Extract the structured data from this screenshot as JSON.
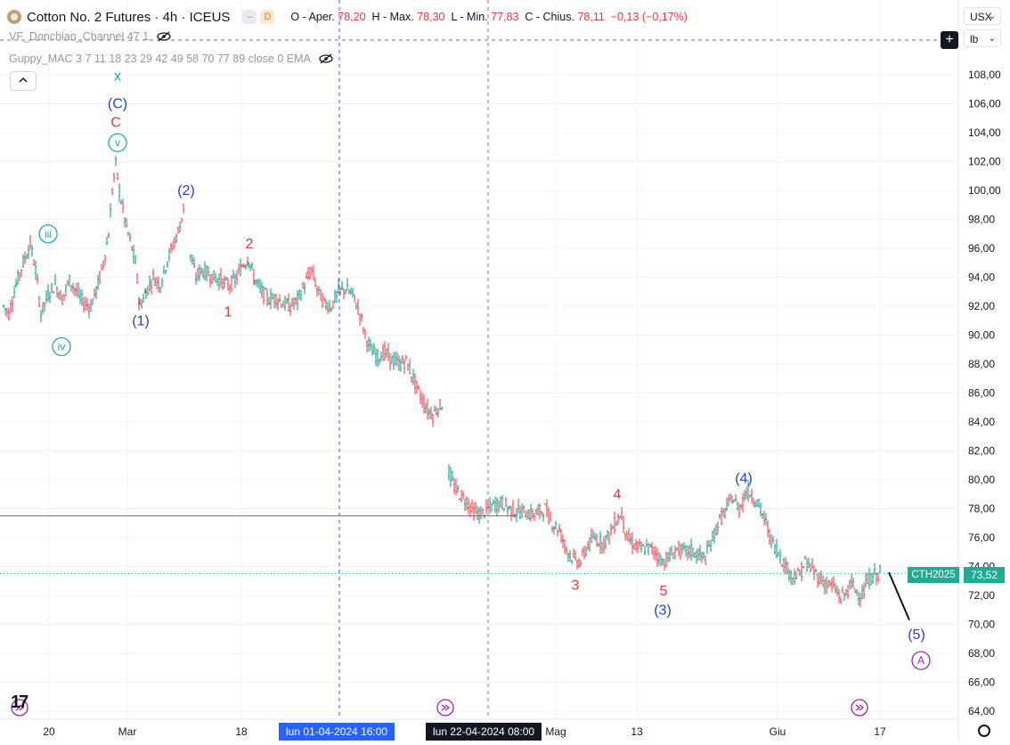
{
  "header": {
    "title": "Cotton No. 2 Futures · 4h · ICEUS",
    "badge_d": "D",
    "ohlc": {
      "open_label": "O - Aper.",
      "open": "78,20",
      "high_label": "H - Max.",
      "high": "78,30",
      "low_label": "L - Min.",
      "low": "77,83",
      "close_label": "C - Chius.",
      "close": "78,11",
      "change": "−0,13 (−0,17%)"
    }
  },
  "indicators": [
    {
      "label": "VF_Donchian_Channel 47 1"
    },
    {
      "label": "Guppy_MAC 3 7 11 18 23 29 42 49 58 70 77 89 close 0 EMA"
    }
  ],
  "scale": {
    "currency": "USX",
    "unit": "lb"
  },
  "price_tag": {
    "symbol": "CTH2025",
    "value": "73,52"
  },
  "crosshair_tags": {
    "date1": "lun 01-04-2024   16:00",
    "date2": "lun 22-04-2024   08:00"
  },
  "colors": {
    "up": "#089981",
    "down": "#f23645",
    "blue_wave": "#2a3fc4",
    "red_wave": "#e03a3a",
    "green_wave": "#22ab94",
    "purple": "#9c27b0",
    "hline": "#e53935",
    "crosshair": "#2962ff"
  },
  "chart_data": {
    "type": "candlestick",
    "ylim": [
      63,
      110
    ],
    "y_ticks": [
      "108,00",
      "106,00",
      "104,00",
      "102,00",
      "100,00",
      "98,00",
      "96,00",
      "94,00",
      "92,00",
      "90,00",
      "88,00",
      "86,00",
      "84,00",
      "82,00",
      "80,00",
      "78,00",
      "76,00",
      "74,00",
      "72,00",
      "70,00",
      "68,00",
      "66,00",
      "64,00"
    ],
    "x_ticks": [
      "20",
      "Mar",
      "18",
      "Mag",
      "13",
      "Giu",
      "17"
    ],
    "horizontal_level": 77.5,
    "last_price": 73.52,
    "price_path": [
      {
        "t": 0,
        "p": 92.0
      },
      {
        "t": 6,
        "p": 91.5
      },
      {
        "t": 14,
        "p": 93.5
      },
      {
        "t": 22,
        "p": 95.0
      },
      {
        "t": 30,
        "p": 96.3
      },
      {
        "t": 36,
        "p": 94.5
      },
      {
        "t": 42,
        "p": 91.5
      },
      {
        "t": 50,
        "p": 92.8
      },
      {
        "t": 58,
        "p": 93.5
      },
      {
        "t": 66,
        "p": 92.5
      },
      {
        "t": 74,
        "p": 93.8
      },
      {
        "t": 82,
        "p": 93.0
      },
      {
        "t": 90,
        "p": 92.2
      },
      {
        "t": 98,
        "p": 92.0
      },
      {
        "t": 106,
        "p": 93.5
      },
      {
        "t": 112,
        "p": 95.0
      },
      {
        "t": 118,
        "p": 97.0
      },
      {
        "t": 122,
        "p": 100.0
      },
      {
        "t": 126,
        "p": 101.8
      },
      {
        "t": 130,
        "p": 100.0
      },
      {
        "t": 136,
        "p": 98.0
      },
      {
        "t": 142,
        "p": 96.5
      },
      {
        "t": 148,
        "p": 95.0
      },
      {
        "t": 153,
        "p": 92.0
      },
      {
        "t": 160,
        "p": 93.0
      },
      {
        "t": 168,
        "p": 94.0
      },
      {
        "t": 176,
        "p": 93.5
      },
      {
        "t": 184,
        "p": 95.2
      },
      {
        "t": 192,
        "p": 96.5
      },
      {
        "t": 198,
        "p": 97.5
      },
      {
        "t": 204,
        "p": 99.5
      },
      {
        "t": 210,
        "p": 95.5
      },
      {
        "t": 216,
        "p": 94.0
      },
      {
        "t": 222,
        "p": 94.5
      },
      {
        "t": 228,
        "p": 94.3
      },
      {
        "t": 236,
        "p": 94.0
      },
      {
        "t": 244,
        "p": 93.8
      },
      {
        "t": 252,
        "p": 93.4
      },
      {
        "t": 260,
        "p": 93.8
      },
      {
        "t": 268,
        "p": 94.8
      },
      {
        "t": 275,
        "p": 95.3
      },
      {
        "t": 282,
        "p": 93.8
      },
      {
        "t": 290,
        "p": 93.0
      },
      {
        "t": 298,
        "p": 92.5
      },
      {
        "t": 306,
        "p": 92.6
      },
      {
        "t": 314,
        "p": 92.2
      },
      {
        "t": 322,
        "p": 92.0
      },
      {
        "t": 330,
        "p": 92.4
      },
      {
        "t": 338,
        "p": 93.5
      },
      {
        "t": 346,
        "p": 94.5
      },
      {
        "t": 352,
        "p": 93.2
      },
      {
        "t": 360,
        "p": 92.2
      },
      {
        "t": 368,
        "p": 92.0
      },
      {
        "t": 376,
        "p": 93.0
      },
      {
        "t": 384,
        "p": 93.2
      },
      {
        "t": 392,
        "p": 92.8
      },
      {
        "t": 400,
        "p": 91.5
      },
      {
        "t": 406,
        "p": 90.0
      },
      {
        "t": 412,
        "p": 89.0
      },
      {
        "t": 420,
        "p": 88.5
      },
      {
        "t": 428,
        "p": 88.8
      },
      {
        "t": 436,
        "p": 88.3
      },
      {
        "t": 444,
        "p": 88.0
      },
      {
        "t": 452,
        "p": 88.2
      },
      {
        "t": 460,
        "p": 87.0
      },
      {
        "t": 468,
        "p": 85.8
      },
      {
        "t": 476,
        "p": 84.8
      },
      {
        "t": 482,
        "p": 84.5
      },
      {
        "t": 488,
        "p": 85.0
      },
      {
        "t": 494,
        "p": 85.3
      },
      {
        "t": 500,
        "p": 80.5
      },
      {
        "t": 506,
        "p": 79.5
      },
      {
        "t": 512,
        "p": 79.0
      },
      {
        "t": 520,
        "p": 78.5
      },
      {
        "t": 528,
        "p": 77.8
      },
      {
        "t": 536,
        "p": 77.6
      },
      {
        "t": 544,
        "p": 78.0
      },
      {
        "t": 552,
        "p": 78.3
      },
      {
        "t": 560,
        "p": 78.4
      },
      {
        "t": 568,
        "p": 78.0
      },
      {
        "t": 576,
        "p": 77.8
      },
      {
        "t": 584,
        "p": 77.8
      },
      {
        "t": 592,
        "p": 77.6
      },
      {
        "t": 600,
        "p": 77.7
      },
      {
        "t": 608,
        "p": 78.0
      },
      {
        "t": 616,
        "p": 77.0
      },
      {
        "t": 624,
        "p": 76.5
      },
      {
        "t": 632,
        "p": 75.2
      },
      {
        "t": 640,
        "p": 74.5
      },
      {
        "t": 648,
        "p": 74.3
      },
      {
        "t": 656,
        "p": 75.5
      },
      {
        "t": 664,
        "p": 76.0
      },
      {
        "t": 672,
        "p": 75.6
      },
      {
        "t": 680,
        "p": 76.2
      },
      {
        "t": 688,
        "p": 77.2
      },
      {
        "t": 694,
        "p": 77.6
      },
      {
        "t": 700,
        "p": 76.0
      },
      {
        "t": 708,
        "p": 75.5
      },
      {
        "t": 716,
        "p": 75.2
      },
      {
        "t": 724,
        "p": 75.3
      },
      {
        "t": 732,
        "p": 75.0
      },
      {
        "t": 740,
        "p": 74.3
      },
      {
        "t": 748,
        "p": 74.7
      },
      {
        "t": 756,
        "p": 75.2
      },
      {
        "t": 764,
        "p": 75.0
      },
      {
        "t": 772,
        "p": 75.1
      },
      {
        "t": 780,
        "p": 74.8
      },
      {
        "t": 788,
        "p": 74.6
      },
      {
        "t": 796,
        "p": 76.0
      },
      {
        "t": 804,
        "p": 77.2
      },
      {
        "t": 812,
        "p": 78.0
      },
      {
        "t": 818,
        "p": 78.8
      },
      {
        "t": 826,
        "p": 78.0
      },
      {
        "t": 834,
        "p": 79.2
      },
      {
        "t": 840,
        "p": 79.0
      },
      {
        "t": 848,
        "p": 78.2
      },
      {
        "t": 856,
        "p": 77.0
      },
      {
        "t": 862,
        "p": 75.8
      },
      {
        "t": 870,
        "p": 75.0
      },
      {
        "t": 878,
        "p": 74.0
      },
      {
        "t": 886,
        "p": 73.3
      },
      {
        "t": 894,
        "p": 73.5
      },
      {
        "t": 900,
        "p": 74.3
      },
      {
        "t": 908,
        "p": 73.8
      },
      {
        "t": 916,
        "p": 73.2
      },
      {
        "t": 924,
        "p": 72.8
      },
      {
        "t": 932,
        "p": 72.6
      },
      {
        "t": 940,
        "p": 71.8
      },
      {
        "t": 946,
        "p": 72.2
      },
      {
        "t": 952,
        "p": 72.8
      },
      {
        "t": 958,
        "p": 72.3
      },
      {
        "t": 964,
        "p": 72.0
      },
      {
        "t": 970,
        "p": 73.0
      },
      {
        "t": 978,
        "p": 73.4
      },
      {
        "t": 986,
        "p": 73.6
      }
    ],
    "wave_labels": [
      {
        "text": "x",
        "color": "green",
        "t": 128,
        "p": 107.9
      },
      {
        "text": "(C)",
        "color": "blue",
        "t": 128,
        "p": 106.0
      },
      {
        "text": "C",
        "color": "red",
        "t": 126,
        "p": 104.7
      },
      {
        "text": "v",
        "color": "green",
        "circle": true,
        "t": 128,
        "p": 103.3
      },
      {
        "text": "iii",
        "color": "green",
        "circle": true,
        "t": 50,
        "p": 97.0
      },
      {
        "text": "iv",
        "color": "green",
        "circle": true,
        "t": 65,
        "p": 89.2
      },
      {
        "text": "(2)",
        "color": "blue",
        "t": 205,
        "p": 100.0
      },
      {
        "text": "(1)",
        "color": "blue",
        "t": 154,
        "p": 91.0
      },
      {
        "text": "2",
        "color": "red",
        "t": 276,
        "p": 96.3
      },
      {
        "text": "1",
        "color": "red",
        "t": 252,
        "p": 91.6
      },
      {
        "text": "4",
        "color": "red",
        "t": 689,
        "p": 79.0
      },
      {
        "text": "(4)",
        "color": "blue",
        "t": 831,
        "p": 80.1
      },
      {
        "text": "3",
        "color": "red",
        "t": 642,
        "p": 72.7
      },
      {
        "text": "5",
        "color": "red",
        "t": 741,
        "p": 72.3
      },
      {
        "text": "(3)",
        "color": "blue",
        "t": 740,
        "p": 71.0
      },
      {
        "text": "(5)",
        "color": "blue",
        "t": 1025,
        "p": 69.3
      },
      {
        "text": "A",
        "color": "purple",
        "circle": true,
        "t": 1030,
        "p": 67.5
      }
    ]
  }
}
